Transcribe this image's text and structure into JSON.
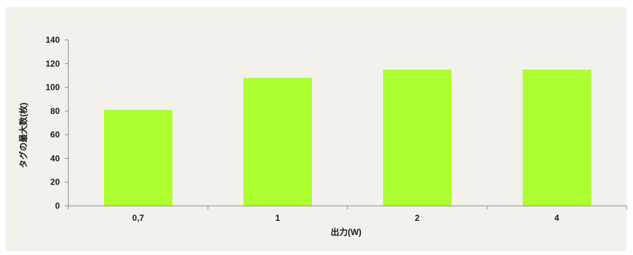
{
  "chart_data": {
    "type": "bar",
    "categories": [
      "0,7",
      "1",
      "2",
      "4"
    ],
    "values": [
      81,
      108,
      115,
      115
    ],
    "xlabel": "出力(W)",
    "ylabel": "タグの最大数(枚)",
    "ylim": [
      0,
      140
    ],
    "yticks": [
      0,
      20,
      40,
      60,
      80,
      100,
      120,
      140
    ],
    "grid": false,
    "legend": "none",
    "colors": {
      "bar": "#adff2f",
      "axis": "#8c8c8c",
      "background": "#f3f1ec"
    }
  }
}
